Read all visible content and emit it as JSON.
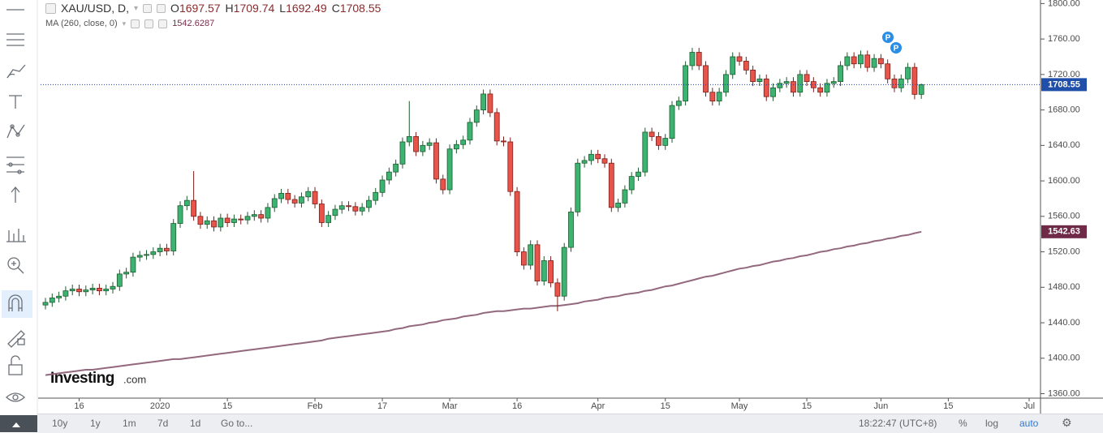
{
  "chart_data": {
    "type": "candlestick",
    "title": "XAU/USD, D,",
    "legend_letters": [
      "O",
      "H",
      "L",
      "C"
    ],
    "categories": [
      null,
      null,
      null,
      null,
      null,
      "16",
      null,
      null,
      null,
      null,
      null,
      null,
      null,
      null,
      null,
      null,
      null,
      "2020",
      null,
      null,
      null,
      null,
      null,
      null,
      null,
      null,
      null,
      "15",
      null,
      null,
      null,
      null,
      null,
      null,
      null,
      null,
      null,
      null,
      null,
      null,
      "Feb",
      null,
      null,
      null,
      null,
      null,
      null,
      null,
      null,
      null,
      "17",
      null,
      null,
      null,
      null,
      null,
      null,
      null,
      null,
      null,
      "Mar",
      null,
      null,
      null,
      null,
      null,
      null,
      null,
      null,
      null,
      "16",
      null,
      null,
      null,
      null,
      null,
      null,
      null,
      null,
      null,
      null,
      null,
      "Apr",
      null,
      null,
      null,
      null,
      null,
      null,
      null,
      null,
      null,
      "15",
      null,
      null,
      null,
      null,
      null,
      null,
      null,
      null,
      null,
      null,
      "May",
      null,
      null,
      null,
      null,
      null,
      null,
      null,
      null,
      null,
      "15",
      null,
      null,
      null,
      null,
      null,
      null,
      null,
      null,
      null,
      null,
      "Jun",
      null,
      null,
      null,
      null,
      null,
      null,
      null,
      null,
      null,
      "15",
      null,
      null,
      null,
      null,
      null,
      null,
      null,
      null,
      null,
      null,
      null,
      "Jul"
    ],
    "open": [
      1460,
      1463,
      1468,
      1470,
      1476,
      1478,
      1475,
      1477,
      1479,
      1476,
      1478,
      1481,
      1495,
      1497,
      1514,
      1516,
      1517,
      1520,
      1524,
      1521,
      1552,
      1572,
      1578,
      1560,
      1551,
      1555,
      1548,
      1558,
      1553,
      1557,
      1556,
      1560,
      1562,
      1558,
      1570,
      1580,
      1586,
      1579,
      1575,
      1582,
      1588,
      1574,
      1553,
      1561,
      1568,
      1572,
      1571,
      1566,
      1570,
      1578,
      1587,
      1601,
      1610,
      1619,
      1644,
      1650,
      1633,
      1640,
      1643,
      1602,
      1590,
      1636,
      1641,
      1646,
      1666,
      1680,
      1698,
      1677,
      1645,
      1644,
      1588,
      1520,
      1505,
      1528,
      1487,
      1510,
      1485,
      1470,
      1525,
      1565,
      1620,
      1623,
      1630,
      1625,
      1620,
      1570,
      1575,
      1590,
      1605,
      1610,
      1655,
      1650,
      1640,
      1648,
      1685,
      1690,
      1730,
      1745,
      1730,
      1700,
      1690,
      1700,
      1720,
      1740,
      1735,
      1725,
      1712,
      1715,
      1695,
      1705,
      1710,
      1712,
      1700,
      1720,
      1712,
      1705,
      1700,
      1710,
      1712,
      1730,
      1740,
      1732,
      1742,
      1728,
      1738,
      1732,
      1715,
      1705,
      1715,
      1728,
      1697.57,
      null,
      null,
      null,
      null,
      null,
      null,
      null,
      null,
      null,
      null,
      null,
      null,
      null,
      null,
      null,
      null
    ],
    "high": [
      1468,
      1473,
      1475,
      1481,
      1483,
      1483,
      1482,
      1484,
      1484,
      1483,
      1486,
      1500,
      1502,
      1519,
      1521,
      1522,
      1525,
      1529,
      1529,
      1557,
      1577,
      1583,
      1611,
      1565,
      1560,
      1560,
      1563,
      1563,
      1562,
      1562,
      1565,
      1567,
      1567,
      1575,
      1585,
      1591,
      1591,
      1584,
      1587,
      1593,
      1593,
      1579,
      1566,
      1573,
      1577,
      1577,
      1576,
      1575,
      1583,
      1592,
      1606,
      1615,
      1624,
      1649,
      1690,
      1655,
      1645,
      1648,
      1648,
      1607,
      1641,
      1646,
      1651,
      1671,
      1685,
      1703,
      1703,
      1682,
      1650,
      1649,
      1593,
      1525,
      1533,
      1533,
      1515,
      1515,
      1490,
      1530,
      1570,
      1625,
      1628,
      1635,
      1635,
      1630,
      1625,
      1580,
      1595,
      1610,
      1615,
      1660,
      1660,
      1655,
      1653,
      1690,
      1695,
      1735,
      1750,
      1750,
      1735,
      1705,
      1705,
      1725,
      1745,
      1745,
      1740,
      1730,
      1720,
      1720,
      1710,
      1715,
      1717,
      1717,
      1725,
      1725,
      1717,
      1710,
      1715,
      1717,
      1735,
      1745,
      1745,
      1747,
      1747,
      1743,
      1743,
      1737,
      1720,
      1720,
      1733,
      1733,
      1709.74,
      null,
      null,
      null,
      null,
      null,
      null,
      null,
      null,
      null,
      null,
      null,
      null,
      null,
      null,
      null,
      null
    ],
    "low": [
      1455,
      1458,
      1463,
      1465,
      1471,
      1470,
      1470,
      1472,
      1471,
      1471,
      1473,
      1476,
      1490,
      1492,
      1509,
      1511,
      1512,
      1515,
      1516,
      1516,
      1547,
      1567,
      1555,
      1546,
      1546,
      1543,
      1543,
      1548,
      1548,
      1551,
      1551,
      1555,
      1553,
      1553,
      1565,
      1575,
      1574,
      1570,
      1570,
      1577,
      1569,
      1548,
      1548,
      1556,
      1563,
      1566,
      1561,
      1561,
      1565,
      1573,
      1582,
      1596,
      1605,
      1614,
      1639,
      1628,
      1628,
      1635,
      1597,
      1585,
      1585,
      1631,
      1636,
      1641,
      1661,
      1675,
      1672,
      1640,
      1639,
      1583,
      1515,
      1500,
      1500,
      1482,
      1482,
      1480,
      1453,
      1465,
      1520,
      1560,
      1615,
      1618,
      1620,
      1615,
      1565,
      1565,
      1570,
      1585,
      1600,
      1605,
      1645,
      1635,
      1635,
      1643,
      1680,
      1685,
      1725,
      1725,
      1695,
      1685,
      1685,
      1695,
      1715,
      1730,
      1720,
      1707,
      1707,
      1690,
      1690,
      1700,
      1705,
      1695,
      1695,
      1707,
      1700,
      1695,
      1695,
      1705,
      1707,
      1725,
      1727,
      1727,
      1723,
      1723,
      1727,
      1710,
      1700,
      1700,
      1710,
      1692,
      1692.49,
      null,
      null,
      null,
      null,
      null,
      null,
      null,
      null,
      null,
      null,
      null,
      null,
      null,
      null,
      null,
      null
    ],
    "close": [
      1463,
      1468,
      1470,
      1476,
      1478,
      1475,
      1477,
      1479,
      1476,
      1478,
      1481,
      1495,
      1497,
      1514,
      1516,
      1517,
      1520,
      1524,
      1521,
      1552,
      1572,
      1578,
      1560,
      1551,
      1555,
      1548,
      1558,
      1553,
      1557,
      1556,
      1560,
      1562,
      1558,
      1570,
      1580,
      1586,
      1579,
      1575,
      1582,
      1588,
      1574,
      1553,
      1561,
      1568,
      1572,
      1571,
      1566,
      1570,
      1578,
      1587,
      1601,
      1610,
      1619,
      1644,
      1650,
      1633,
      1640,
      1643,
      1602,
      1590,
      1636,
      1641,
      1646,
      1666,
      1680,
      1698,
      1677,
      1645,
      1644,
      1588,
      1520,
      1505,
      1528,
      1487,
      1510,
      1485,
      1470,
      1525,
      1565,
      1620,
      1623,
      1630,
      1625,
      1620,
      1570,
      1575,
      1590,
      1605,
      1610,
      1655,
      1650,
      1640,
      1648,
      1685,
      1690,
      1730,
      1745,
      1730,
      1700,
      1690,
      1700,
      1720,
      1740,
      1735,
      1725,
      1712,
      1715,
      1695,
      1705,
      1710,
      1712,
      1700,
      1720,
      1712,
      1705,
      1700,
      1710,
      1712,
      1730,
      1740,
      1732,
      1742,
      1728,
      1738,
      1732,
      1715,
      1705,
      1715,
      1728,
      1697.57,
      1708.55,
      null,
      null,
      null,
      null,
      null,
      null,
      null,
      null,
      null,
      null,
      null,
      null,
      null,
      null,
      null,
      null
    ],
    "up_color": "#3cb371",
    "down_color": "#e8534a",
    "ma": {
      "name": "MA (260, close, 0)",
      "color": "#93687e",
      "tag_label": "1542.63",
      "values": [
        1381,
        1382,
        1383,
        1384,
        1385,
        1386,
        1387,
        1387,
        1388,
        1389,
        1390,
        1391,
        1392,
        1393,
        1394,
        1395,
        1396,
        1397,
        1398,
        1399,
        1399,
        1400,
        1401,
        1402,
        1403,
        1404,
        1405,
        1406,
        1407,
        1408,
        1409,
        1410,
        1411,
        1412,
        1413,
        1414,
        1415,
        1416,
        1417,
        1418,
        1419,
        1420,
        1422,
        1423,
        1424,
        1425,
        1426,
        1427,
        1428,
        1429,
        1430,
        1431,
        1433,
        1434,
        1436,
        1437,
        1438,
        1440,
        1441,
        1443,
        1444,
        1445,
        1447,
        1448,
        1449,
        1451,
        1452,
        1453,
        1453,
        1454,
        1455,
        1456,
        1456,
        1457,
        1458,
        1459,
        1459,
        1460,
        1461,
        1462,
        1464,
        1465,
        1466,
        1468,
        1469,
        1470,
        1472,
        1473,
        1474,
        1476,
        1477,
        1479,
        1481,
        1482,
        1484,
        1486,
        1488,
        1490,
        1492,
        1493,
        1495,
        1497,
        1499,
        1501,
        1502,
        1504,
        1505,
        1507,
        1509,
        1510,
        1512,
        1513,
        1515,
        1516,
        1518,
        1520,
        1521,
        1523,
        1524,
        1526,
        1527,
        1529,
        1530,
        1532,
        1533,
        1535,
        1536,
        1538,
        1539,
        1541,
        1542.6287,
        null,
        null,
        null,
        null,
        null,
        null,
        null,
        null,
        null,
        null,
        null,
        null,
        null,
        null,
        null,
        null
      ]
    },
    "ylim": [
      1355,
      1804
    ],
    "yticks": [
      {
        "value": 1360,
        "label": "1360.00"
      },
      {
        "value": 1400,
        "label": "1400.00"
      },
      {
        "value": 1440,
        "label": "1440.00"
      },
      {
        "value": 1480,
        "label": "1480.00"
      },
      {
        "value": 1520,
        "label": "1520.00"
      },
      {
        "value": 1560,
        "label": "1560.00"
      },
      {
        "value": 1600,
        "label": "1600.00"
      },
      {
        "value": 1640,
        "label": "1640.00"
      },
      {
        "value": 1680,
        "label": "1680.00"
      },
      {
        "value": 1720,
        "label": "1720.00"
      },
      {
        "value": 1760,
        "label": "1760.00"
      },
      {
        "value": 1800,
        "label": "1800.00"
      }
    ],
    "markers": [
      "P",
      "P"
    ],
    "logo": {
      "brand": "Investing",
      "suffix": ".com"
    }
  },
  "toolbar": {
    "ranges": [
      "10y",
      "1y",
      "1m",
      "7d",
      "1d",
      "Go to..."
    ],
    "time": "18:22:47 (UTC+8)",
    "options": [
      "%",
      "log",
      "auto"
    ]
  }
}
